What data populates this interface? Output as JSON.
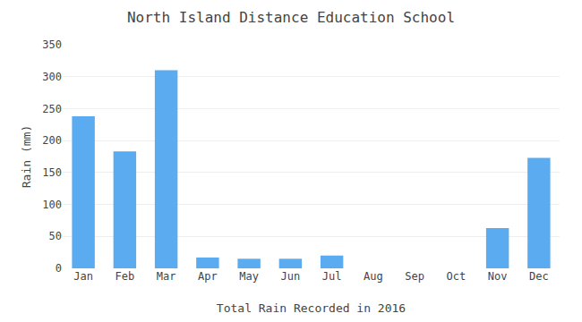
{
  "chart_data": {
    "type": "bar",
    "title": "North Island Distance Education School",
    "xlabel": "Total Rain Recorded in 2016",
    "ylabel": "Rain (mm)",
    "categories": [
      "Jan",
      "Feb",
      "Mar",
      "Apr",
      "May",
      "Jun",
      "Jul",
      "Aug",
      "Sep",
      "Oct",
      "Nov",
      "Dec"
    ],
    "values": [
      238,
      183,
      310,
      17,
      15,
      15,
      20,
      0,
      0,
      0,
      63,
      173
    ],
    "color": "#5aabf0",
    "ylim": [
      0,
      350
    ],
    "yticks": [
      0,
      50,
      100,
      150,
      200,
      250,
      300,
      350
    ],
    "grid": true
  }
}
